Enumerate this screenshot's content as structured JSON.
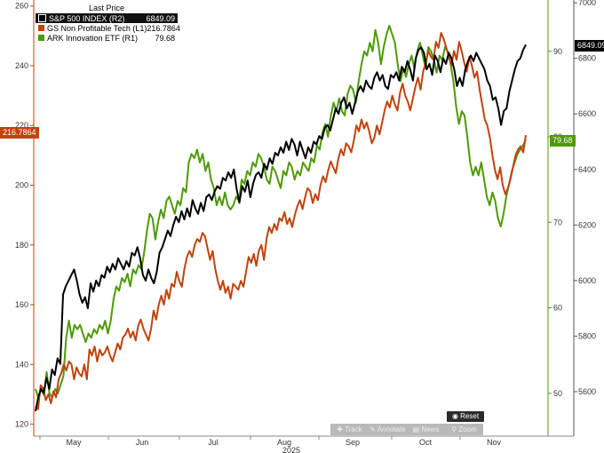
{
  "legend": {
    "header": "Last Price",
    "items": [
      {
        "name": "S&P 500 INDEX  (R2)",
        "value": "6849.09",
        "color": "#000000"
      },
      {
        "name": "GS Non Profitable Tech  (L1)",
        "value": "216.7864",
        "color": "#c0430e"
      },
      {
        "name": "ARK Innovation ETF  (R1)",
        "value": "79.68",
        "color": "#4e9a06"
      }
    ]
  },
  "badges": {
    "left": "216.7864",
    "ark": "79.68",
    "spx": "6849.09"
  },
  "toolbar": {
    "reset": "Reset",
    "track": "Track",
    "annotate": "Annotate",
    "news": "News",
    "zoom": "Zoom"
  },
  "chart_data": {
    "type": "line",
    "x_labels": [
      "May",
      "Jun",
      "Jul",
      "Aug",
      "Sep",
      "Oct",
      "Nov"
    ],
    "x_year_label": "2025",
    "axes": {
      "L1": {
        "ticks": [
          120,
          140,
          160,
          180,
          200,
          220,
          240,
          260
        ],
        "range": [
          116,
          262
        ]
      },
      "R1": {
        "ticks": [
          50,
          60,
          70,
          80,
          90
        ],
        "range": [
          45,
          96
        ]
      },
      "R2": {
        "ticks": [
          5600,
          5800,
          6000,
          6200,
          6400,
          6600,
          6800,
          7000
        ],
        "range": [
          5440,
          7010
        ]
      }
    },
    "series": [
      {
        "name": "S&P 500 INDEX  (R2)",
        "axis": "R2",
        "color": "#000000",
        "values": [
          5530,
          5580,
          5610,
          5595,
          5650,
          5610,
          5680,
          5660,
          5720,
          5700,
          5950,
          5980,
          6000,
          6020,
          6040,
          6000,
          5950,
          5920,
          5940,
          5900,
          5990,
          5960,
          6000,
          5980,
          6020,
          6010,
          6050,
          6030,
          6060,
          6040,
          6080,
          6060,
          6040,
          6070,
          6050,
          6100,
          6090,
          6120,
          6080,
          6020,
          6000,
          6040,
          6010,
          5990,
          6030,
          6100,
          6120,
          6150,
          6180,
          6160,
          6200,
          6230,
          6210,
          6250,
          6220,
          6260,
          6230,
          6290,
          6260,
          6240,
          6280,
          6250,
          6300,
          6310,
          6290,
          6320,
          6340,
          6330,
          6370,
          6360,
          6390,
          6370,
          6400,
          6330,
          6280,
          6340,
          6320,
          6360,
          6300,
          6350,
          6380,
          6390,
          6370,
          6420,
          6400,
          6440,
          6420,
          6460,
          6450,
          6480,
          6460,
          6500,
          6470,
          6510,
          6490,
          6450,
          6500,
          6470,
          6440,
          6480,
          6460,
          6500,
          6490,
          6520,
          6510,
          6550,
          6560,
          6540,
          6580,
          6620,
          6600,
          6640,
          6660,
          6620,
          6640,
          6600,
          6640,
          6680,
          6700,
          6680,
          6720,
          6700,
          6690,
          6730,
          6750,
          6720,
          6740,
          6700,
          6690,
          6740,
          6730,
          6750,
          6720,
          6770,
          6750,
          6790,
          6760,
          6720,
          6800,
          6830,
          6840,
          6820,
          6760,
          6780,
          6740,
          6810,
          6790,
          6750,
          6800,
          6780,
          6820,
          6800,
          6760,
          6700,
          6730,
          6700,
          6760,
          6790,
          6810,
          6790,
          6820,
          6800,
          6780,
          6760,
          6720,
          6700,
          6650,
          6660,
          6620,
          6560,
          6610,
          6620,
          6680,
          6720,
          6760,
          6790,
          6800,
          6830,
          6849.09
        ]
      },
      {
        "name": "GS Non Profitable Tech  (L1)",
        "axis": "L1",
        "color": "#c0430e",
        "values": [
          126,
          125,
          133,
          132,
          128,
          130,
          127,
          131,
          129,
          135,
          137,
          140,
          138,
          141,
          140,
          135,
          139,
          137,
          136,
          140,
          135,
          145,
          143,
          146,
          141,
          145,
          143,
          144,
          146,
          143,
          141,
          144,
          147,
          145,
          149,
          150,
          152,
          149,
          151,
          148,
          153,
          155,
          152,
          150,
          148,
          152,
          158,
          155,
          160,
          163,
          160,
          165,
          162,
          167,
          166,
          171,
          168,
          166,
          172,
          176,
          178,
          176,
          180,
          182,
          181,
          184,
          183,
          179,
          175,
          178,
          172,
          168,
          165,
          168,
          164,
          166,
          162,
          167,
          166,
          165,
          168,
          166,
          171,
          176,
          174,
          177,
          173,
          178,
          180,
          175,
          182,
          186,
          184,
          187,
          185,
          189,
          188,
          191,
          187,
          189,
          186,
          190,
          193,
          195,
          192,
          196,
          199,
          198,
          194,
          197,
          195,
          200,
          203,
          201,
          205,
          208,
          206,
          204,
          209,
          212,
          210,
          214,
          213,
          211,
          215,
          220,
          218,
          222,
          219,
          221,
          218,
          214,
          216,
          220,
          217,
          221,
          225,
          228,
          226,
          230,
          227,
          225,
          231,
          234,
          230,
          228,
          225,
          229,
          233,
          236,
          232,
          238,
          241,
          245,
          243,
          242,
          248,
          246,
          251,
          249,
          246,
          243,
          240,
          245,
          242,
          248,
          245,
          241,
          238,
          243,
          240,
          236,
          238,
          232,
          227,
          222,
          220,
          216,
          210,
          205,
          202,
          206,
          200,
          197,
          199,
          202,
          206,
          210,
          212,
          213,
          211,
          216.7864
        ]
      },
      {
        "name": "ARK Innovation ETF  (R1)",
        "axis": "R1",
        "color": "#4e9a06",
        "values": [
          50.5,
          49.5,
          50.5,
          49.8,
          52.5,
          50.0,
          49.5,
          50.5,
          50.0,
          51.0,
          52.0,
          56.5,
          58.5,
          56.5,
          58.0,
          57.5,
          58.0,
          57.0,
          56.0,
          57.0,
          56.5,
          57.5,
          57.0,
          58.0,
          57.5,
          58.5,
          57.0,
          58.5,
          61.0,
          62.5,
          62.0,
          63.5,
          63.0,
          64.0,
          62.5,
          64.5,
          64.0,
          65.0,
          64.5,
          66.5,
          69.0,
          71.0,
          70.5,
          68.0,
          70.0,
          71.5,
          70.5,
          72.5,
          73.0,
          72.0,
          71.0,
          72.5,
          72.0,
          74.0,
          73.5,
          77.0,
          78.0,
          77.5,
          78.5,
          77.0,
          78.0,
          76.0,
          77.0,
          75.0,
          74.0,
          72.0,
          73.0,
          72.0,
          73.5,
          72.0,
          71.5,
          72.0,
          73.0,
          72.5,
          75.0,
          74.5,
          76.0,
          75.5,
          77.0,
          76.5,
          78.0,
          77.5,
          76.5,
          75.0,
          74.5,
          76.5,
          76.0,
          75.0,
          74.0,
          76.0,
          75.5,
          77.0,
          76.5,
          75.0,
          76.0,
          75.5,
          77.0,
          76.5,
          76.0,
          77.5,
          77.0,
          79.0,
          78.5,
          80.5,
          81.5,
          80.0,
          82.5,
          84.0,
          83.0,
          84.5,
          83.0,
          82.5,
          85.0,
          86.0,
          85.5,
          84.0,
          86.5,
          88.5,
          90.0,
          89.5,
          91.0,
          90.0,
          92.5,
          91.0,
          88.5,
          90.5,
          92.0,
          93.0,
          92.0,
          91.0,
          88.5,
          86.5,
          88.0,
          87.0,
          88.5,
          89.5,
          88.0,
          90.0,
          91.0,
          89.5,
          88.0,
          90.5,
          90.0,
          89.0,
          87.5,
          89.5,
          89.0,
          90.5,
          90.0,
          88.5,
          86.5,
          83.5,
          81.5,
          83.0,
          82.5,
          80.0,
          77.0,
          75.5,
          76.5,
          75.5,
          77.0,
          75.0,
          73.0,
          72.0,
          73.5,
          72.5,
          70.5,
          69.5,
          71.0,
          73.0,
          74.5,
          76.0,
          77.0,
          78.0,
          78.5,
          79.0,
          79.68
        ]
      }
    ]
  }
}
